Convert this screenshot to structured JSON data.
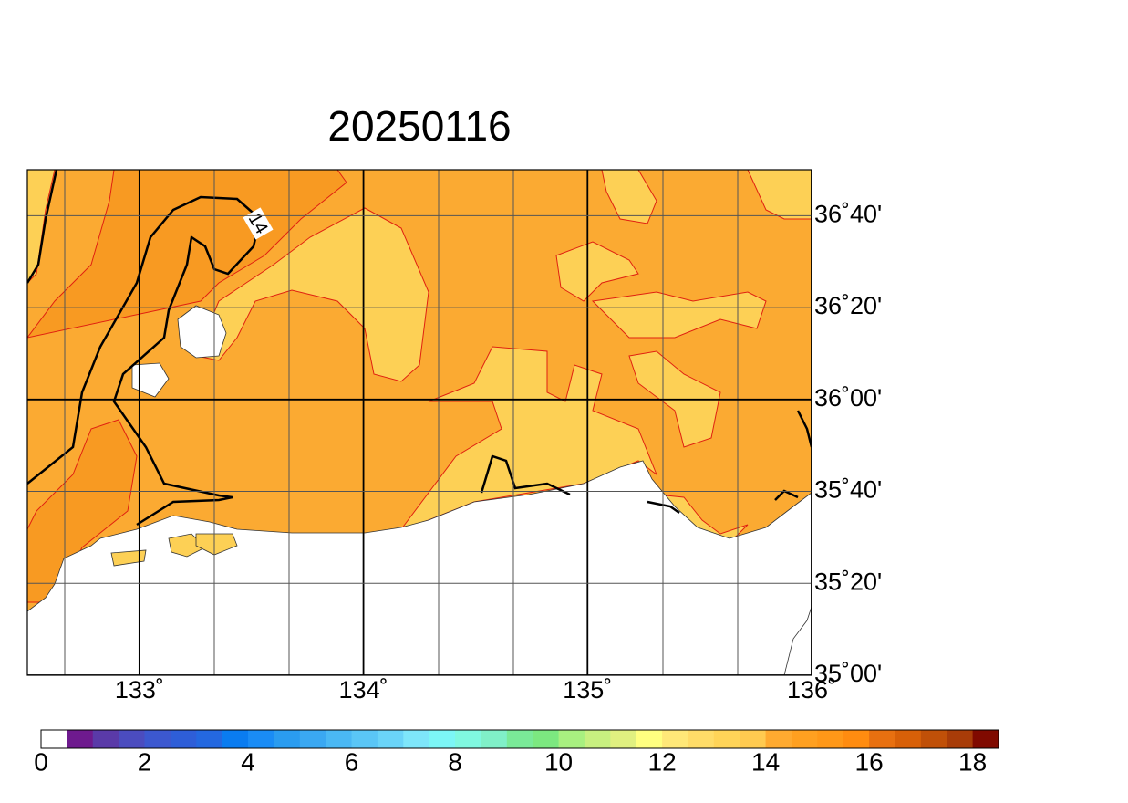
{
  "map": {
    "title": "20250116",
    "xlim": [
      132.5,
      136
    ],
    "ylim": [
      35,
      36.8333
    ],
    "xticks": [
      {
        "value": 133,
        "label": "133˚"
      },
      {
        "value": 134,
        "label": "134˚"
      },
      {
        "value": 135,
        "label": "135˚"
      },
      {
        "value": 136,
        "label": "136˚"
      }
    ],
    "yticks": [
      {
        "value": 35,
        "label": "35˚00'"
      },
      {
        "value": 35.3333,
        "label": "35˚20'"
      },
      {
        "value": 35.6667,
        "label": "35˚40'"
      },
      {
        "value": 36,
        "label": "36˚00'"
      },
      {
        "value": 36.3333,
        "label": "36˚20'"
      },
      {
        "value": 36.6667,
        "label": "36˚40'"
      }
    ],
    "contour_label": "14",
    "colorbar": {
      "lim": [
        0,
        18.5
      ],
      "ticks": [
        0,
        2,
        4,
        6,
        8,
        10,
        12,
        14,
        16,
        18
      ],
      "colors": [
        "#ffffff",
        "#6e1a8e",
        "#5a3aa8",
        "#4b4cbf",
        "#3c58cf",
        "#2e5ed8",
        "#2468e0",
        "#0a7cf0",
        "#1a8cf5",
        "#2a9cf0",
        "#3aa8f2",
        "#4ab8f4",
        "#5ac6f6",
        "#6ad4f8",
        "#7ee6fa",
        "#7cf6f6",
        "#80f8e0",
        "#80f0c8",
        "#7aea98",
        "#7ce880",
        "#a8f080",
        "#c8f080",
        "#e0f080",
        "#ffff80",
        "#ffe878",
        "#ffdc68",
        "#ffd458",
        "#ffca50",
        "#ffaa30",
        "#ffa020",
        "#ff9818",
        "#ff8c10",
        "#e87010",
        "#d86008",
        "#c05008",
        "#a83c08",
        "#800a00"
      ]
    }
  }
}
